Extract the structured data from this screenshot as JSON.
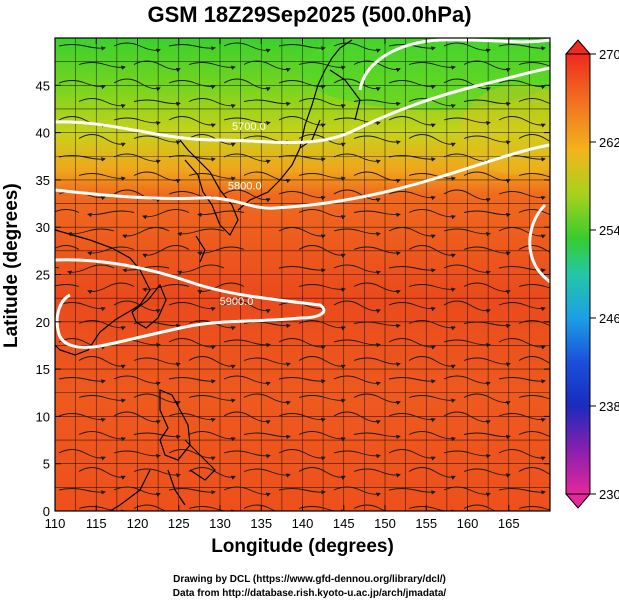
{
  "title": "GSM 18Z29Sep2025 (500.0hPa)",
  "xlabel": "Longitude (degrees)",
  "ylabel": "Latitude  (degrees)",
  "credits": [
    "Drawing by DCL (https://www.gfd-dennou.org/library/dcl/)",
    "Data from http://database.rish.kyoto-u.ac.jp/arch/jmadata/"
  ],
  "map": {
    "lon_range": [
      110,
      170
    ],
    "lat_range": [
      0,
      50
    ],
    "lon_ticks": [
      "110",
      "115",
      "120",
      "125",
      "130",
      "135",
      "140",
      "145",
      "150",
      "155",
      "160",
      "165"
    ],
    "lat_ticks": [
      "0",
      "5",
      "10",
      "15",
      "20",
      "25",
      "30",
      "35",
      "40",
      "45"
    ],
    "contour_labels": [
      {
        "text": "5700.0",
        "lon": 133.5,
        "lat": 40.3
      },
      {
        "text": "5800.0",
        "lon": 133.0,
        "lat": 34.0
      },
      {
        "text": "5900.0",
        "lon": 132.0,
        "lat": 21.8
      }
    ]
  },
  "colorbar": {
    "ticks": [
      "270",
      "262",
      "254",
      "246",
      "238",
      "230"
    ],
    "min": 230,
    "max": 270
  },
  "colors": {
    "contour": "#ffffff",
    "streamline": "#1a1a1a",
    "coastline": "#000000"
  }
}
